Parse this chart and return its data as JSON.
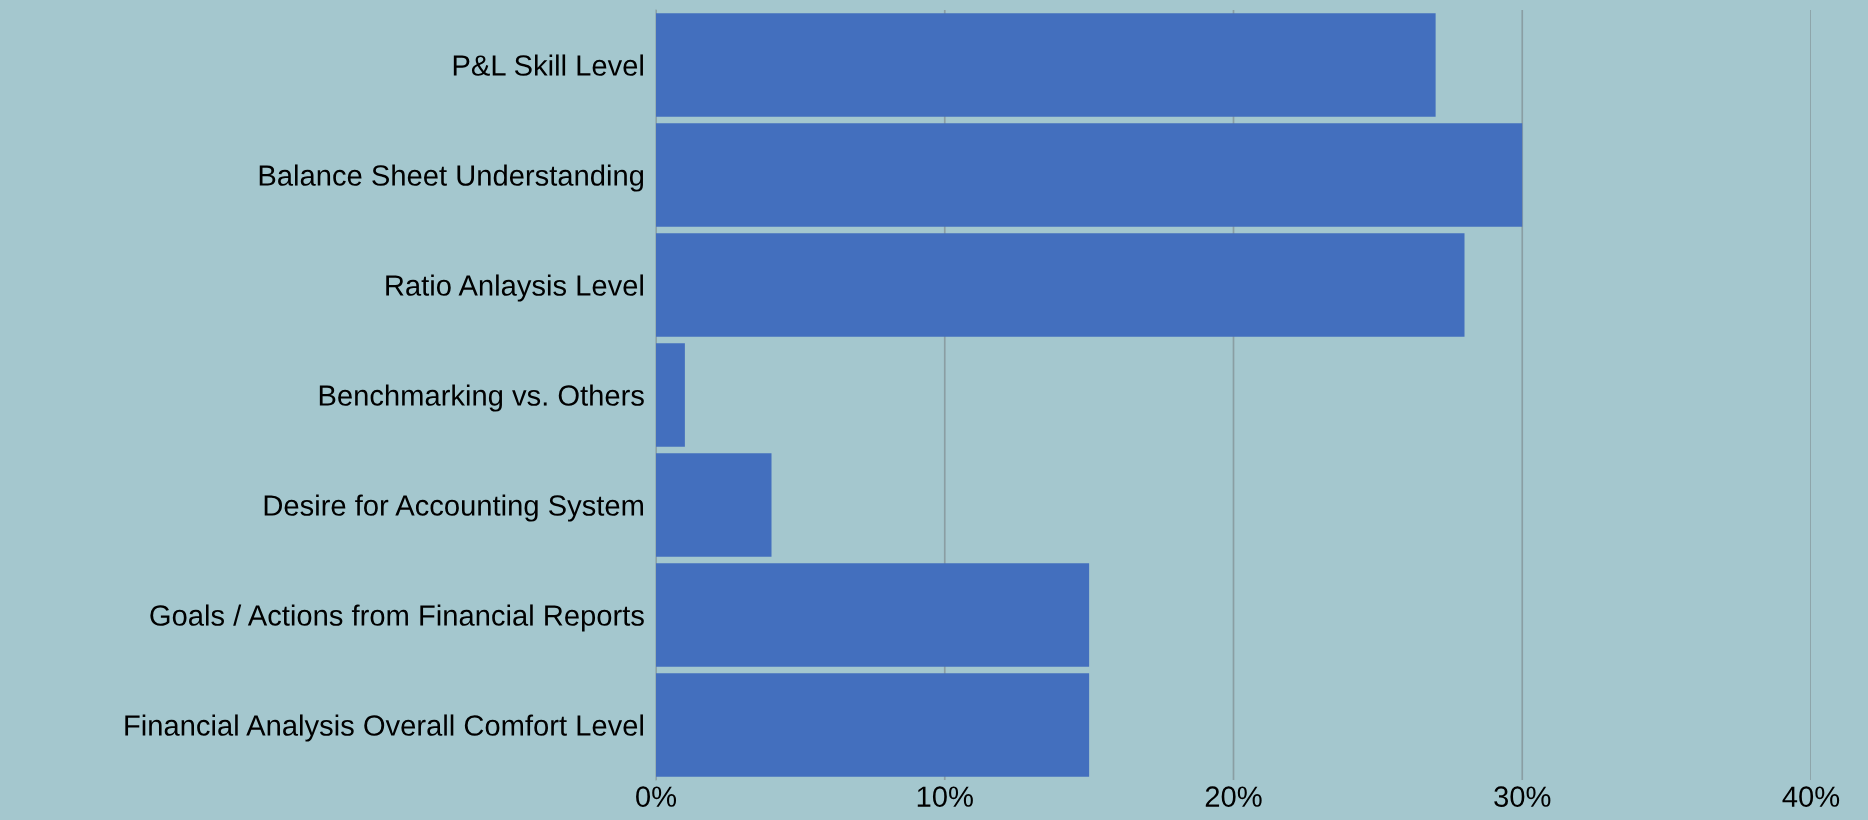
{
  "chart_data": {
    "type": "bar",
    "orientation": "horizontal",
    "categories": [
      "P&L Skill Level",
      "Balance Sheet Understanding",
      "Ratio Anlaysis Level",
      "Benchmarking vs. Others",
      "Desire for Accounting System",
      "Goals / Actions from Financial Reports",
      "Financial Analysis Overall Comfort Level"
    ],
    "values": [
      27,
      30,
      28,
      1,
      4,
      15,
      15
    ],
    "color": "#436fbe",
    "xlim": [
      0,
      40
    ],
    "xticks": [
      {
        "value": 0,
        "label": "0%"
      },
      {
        "value": 10,
        "label": "10%"
      },
      {
        "value": 20,
        "label": "20%"
      },
      {
        "value": 30,
        "label": "30%"
      },
      {
        "value": 40,
        "label": "40%"
      }
    ],
    "grid": "x"
  }
}
